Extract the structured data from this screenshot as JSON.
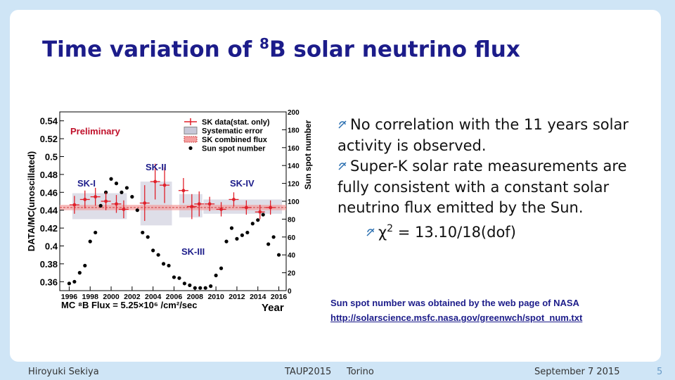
{
  "title": {
    "before": "Time variation of ",
    "sup": "8",
    "after": "B solar neutrino flux"
  },
  "chart": {
    "type": "scatter",
    "ylabel": "DATA/MC(unoscillated)",
    "y2label": "Sun spot number",
    "xlabel": "Year",
    "flux_note": "MC ⁸B Flux = 5.25×10⁶ /cm²/sec",
    "annotations": [
      "Preliminary",
      "SK-I",
      "SK-II",
      "SK-III",
      "SK-IV"
    ],
    "legend": [
      "SK data(stat. only)",
      "Systematic error",
      "SK combined flux",
      "Sun spot number"
    ],
    "xlim": [
      1995.1,
      2016.7
    ],
    "xticks": [
      1996,
      1998,
      2000,
      2002,
      2004,
      2006,
      2008,
      2010,
      2012,
      2014,
      2016
    ],
    "ylim": [
      0.35,
      0.55
    ],
    "yticks": [
      0.36,
      0.38,
      0.4,
      0.42,
      0.44,
      0.46,
      0.48,
      0.5,
      0.52,
      0.54
    ],
    "y2lim": [
      0,
      200
    ],
    "y2ticks": [
      0,
      20,
      40,
      60,
      80,
      100,
      120,
      140,
      160,
      180,
      200
    ],
    "sk": {
      "color": "#e0202a",
      "x": [
        1996.5,
        1997.5,
        1998.5,
        1999.5,
        2000.5,
        2001.2,
        2003.2,
        2004.2,
        2005.1,
        2006.9,
        2007.7,
        2008.4,
        2009.4,
        2010.5,
        2011.7,
        2012.9,
        2014.2,
        2015.2
      ],
      "values": [
        0.446,
        0.452,
        0.455,
        0.45,
        0.447,
        0.441,
        0.448,
        0.472,
        0.468,
        0.462,
        0.444,
        0.447,
        0.447,
        0.441,
        0.452,
        0.443,
        0.438,
        0.443
      ],
      "errors": [
        0.01,
        0.01,
        0.01,
        0.01,
        0.01,
        0.01,
        0.02,
        0.02,
        0.02,
        0.014,
        0.014,
        0.014,
        0.008,
        0.008,
        0.008,
        0.008,
        0.008,
        0.008
      ]
    },
    "systematic": {
      "color": "#c8c8d8",
      "x0": [
        1996.3,
        2002.8,
        2006.5,
        2008.8
      ],
      "x1": [
        2001.5,
        2005.8,
        2008.7,
        2016.3
      ],
      "low": [
        0.43,
        0.423,
        0.432,
        0.436
      ],
      "high": [
        0.459,
        0.472,
        0.458,
        0.452
      ]
    },
    "combined": {
      "value": 0.443,
      "error": 0.003,
      "color": "#f4a0a0"
    },
    "sunspot": {
      "color": "#000000",
      "x": [
        1996,
        1996.5,
        1997,
        1997.5,
        1998,
        1998.5,
        1999,
        1999.5,
        2000,
        2000.5,
        2001,
        2001.5,
        2002,
        2002.5,
        2003,
        2003.5,
        2004,
        2004.5,
        2005,
        2005.5,
        2006,
        2006.5,
        2007,
        2007.5,
        2008,
        2008.5,
        2009,
        2009.5,
        2010,
        2010.5,
        2011,
        2011.5,
        2012,
        2012.5,
        2013,
        2013.5,
        2014,
        2014.5,
        2015,
        2015.5,
        2016
      ],
      "values": [
        8,
        10,
        20,
        28,
        55,
        65,
        95,
        110,
        125,
        120,
        110,
        115,
        105,
        90,
        65,
        60,
        45,
        40,
        30,
        28,
        15,
        14,
        8,
        6,
        3,
        3,
        3,
        5,
        17,
        25,
        55,
        70,
        58,
        62,
        65,
        75,
        79,
        85,
        52,
        60,
        40
      ]
    }
  },
  "bullets": [
    "No correlation with the 11 years solar activity is observed.",
    "Super-K solar rate measurements are fully consistent with a constant solar neutrino flux emitted by the Sun."
  ],
  "sub_bullet": {
    "symbol": "χ",
    "sup": "2",
    "rest": " = 13.10/18(dof)"
  },
  "source": {
    "text": "Sun spot number was obtained by the web page of NASA",
    "link": "http://solarscience.msfc.nasa.gov/greenwch/spot_num.txt"
  },
  "footer": {
    "author": "Hiroyuki Sekiya",
    "conference": "TAUP2015",
    "place": "Torino",
    "date": "September 7 2015",
    "page": "5"
  }
}
